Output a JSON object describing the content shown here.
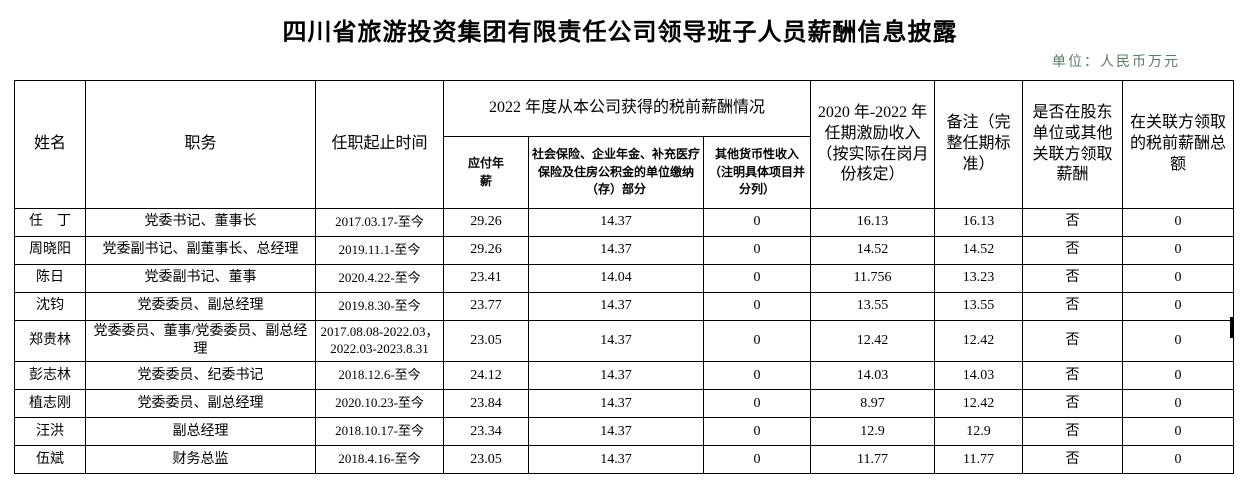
{
  "title": "四川省旅游投资集团有限责任公司领导班子人员薪酬信息披露",
  "unit_note": "单位：人民币万元",
  "table": {
    "headers": {
      "name": "姓名",
      "position": "职务",
      "term": "任职起止时间",
      "salary_group": "2022 年度从本公司获得的税前薪酬情况",
      "salary_sub": [
        "应付年薪",
        "社会保险、企业年金、补充医疗保险及住房公积金的单位缴纳（存）部分",
        "其他货币性收入（注明具体项目并分列）"
      ],
      "incentive": "2020 年-2022 年任期激励收入（按实际在岗月份核定）",
      "remark": "备注（完整任期标准）",
      "related_party": "是否在股东单位或其他关联方领取薪酬",
      "related_total": "在关联方领取的税前薪酬总额"
    },
    "rows": [
      [
        "任　丁",
        "党委书记、董事长",
        "2017.03.17-至今",
        "29.26",
        "14.37",
        "0",
        "16.13",
        "16.13",
        "否",
        "0"
      ],
      [
        "周晓阳",
        "党委副书记、副董事长、总经理",
        "2019.11.1-至今",
        "29.26",
        "14.37",
        "0",
        "14.52",
        "14.52",
        "否",
        "0"
      ],
      [
        "陈日",
        "党委副书记、董事",
        "2020.4.22-至今",
        "23.41",
        "14.04",
        "0",
        "11.756",
        "13.23",
        "否",
        "0"
      ],
      [
        "沈钧",
        "党委委员、副总经理",
        "2019.8.30-至今",
        "23.77",
        "14.37",
        "0",
        "13.55",
        "13.55",
        "否",
        "0"
      ],
      [
        "郑贵林",
        "党委委员、董事/党委委员、副总经理",
        "2017.08.08-2022.03，2022.03-2023.8.31",
        "23.05",
        "14.37",
        "0",
        "12.42",
        "12.42",
        "否",
        "0"
      ],
      [
        "彭志林",
        "党委委员、纪委书记",
        "2018.12.6-至今",
        "24.12",
        "14.37",
        "0",
        "14.03",
        "14.03",
        "否",
        "0"
      ],
      [
        "植志刚",
        "党委委员、副总经理",
        "2020.10.23-至今",
        "23.84",
        "14.37",
        "0",
        "8.97",
        "12.42",
        "否",
        "0"
      ],
      [
        "汪洪",
        "副总经理",
        "2018.10.17-至今",
        "23.34",
        "14.37",
        "0",
        "12.9",
        "12.9",
        "否",
        "0"
      ],
      [
        "伍斌",
        "财务总监",
        "2018.4.16-至今",
        "23.05",
        "14.37",
        "0",
        "11.77",
        "11.77",
        "否",
        "0"
      ]
    ]
  }
}
